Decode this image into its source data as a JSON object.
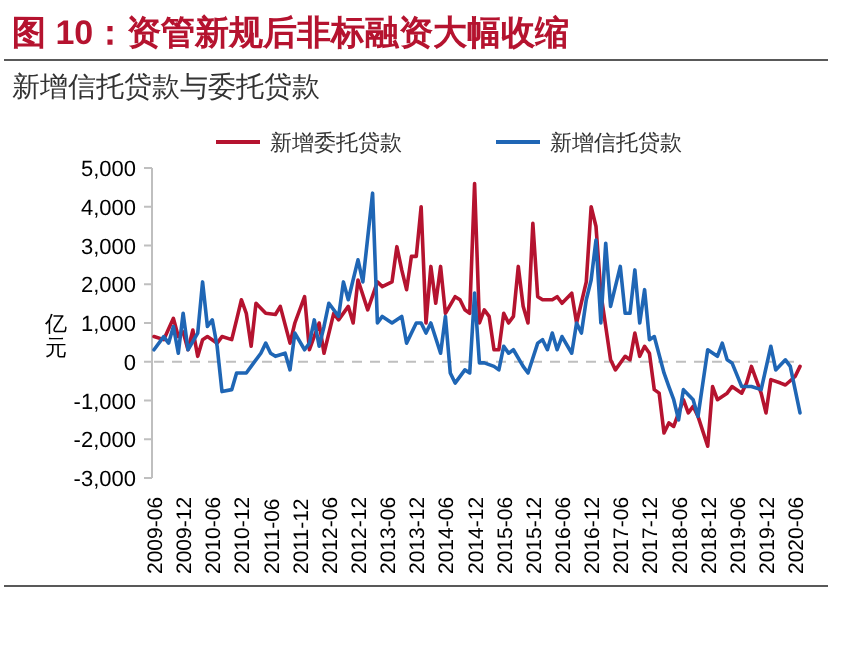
{
  "chart_data": {
    "type": "line",
    "title": "图 10：资管新规后非标融资大幅收缩",
    "subtitle": "新增信托贷款与委托贷款",
    "ylabel": "亿元",
    "xlim": [
      "2009-06",
      "2020-07"
    ],
    "xticks": [
      "2009-06",
      "2009-12",
      "2010-06",
      "2010-12",
      "2011-06",
      "2011-12",
      "2012-06",
      "2012-12",
      "2013-06",
      "2013-12",
      "2014-06",
      "2014-12",
      "2015-06",
      "2015-12",
      "2016-06",
      "2016-12",
      "2017-06",
      "2017-12",
      "2018-06",
      "2018-12",
      "2019-06",
      "2019-12",
      "2020-06"
    ],
    "ylim": [
      -3000,
      5000
    ],
    "yticks": [
      {
        "value": -3000,
        "label": "-3,000"
      },
      {
        "value": -2000,
        "label": "-2,000"
      },
      {
        "value": -1000,
        "label": "-1,000"
      },
      0,
      {
        "value": 1000,
        "label": "1,000"
      },
      {
        "value": 2000,
        "label": "2,000"
      },
      {
        "value": 3000,
        "label": "3,000"
      },
      {
        "value": 4000,
        "label": "4,000"
      },
      {
        "value": 5000,
        "label": "5,000"
      }
    ],
    "legend": "top",
    "grid": false,
    "marker": "none",
    "line_style": "solid",
    "ref_lines": [
      {
        "axis": "y",
        "value": 0,
        "color": "#bfbfbf",
        "line_style": "dashed"
      }
    ],
    "series": [
      {
        "name": "新增委托贷款",
        "color": "#b5132f",
        "x": [
          "2009-06",
          "2009-08",
          "2009-10",
          "2009-11",
          "2009-12",
          "2010-01",
          "2010-02",
          "2010-03",
          "2010-04",
          "2010-05",
          "2010-07",
          "2010-08",
          "2010-10",
          "2010-11",
          "2010-12",
          "2011-01",
          "2011-02",
          "2011-03",
          "2011-05",
          "2011-07",
          "2011-08",
          "2011-10",
          "2011-11",
          "2012-01",
          "2012-02",
          "2012-04",
          "2012-05",
          "2012-07",
          "2012-08",
          "2012-10",
          "2012-11",
          "2012-12",
          "2013-02",
          "2013-04",
          "2013-05",
          "2013-07",
          "2013-08",
          "2013-09",
          "2013-10",
          "2013-11",
          "2013-12",
          "2014-01",
          "2014-02",
          "2014-03",
          "2014-04",
          "2014-05",
          "2014-06",
          "2014-08",
          "2014-09",
          "2014-10",
          "2014-11",
          "2014-12",
          "2015-01",
          "2015-02",
          "2015-03",
          "2015-04",
          "2015-05",
          "2015-06",
          "2015-07",
          "2015-08",
          "2015-09",
          "2015-10",
          "2015-11",
          "2015-12",
          "2016-01",
          "2016-02",
          "2016-04",
          "2016-05",
          "2016-06",
          "2016-08",
          "2016-09",
          "2016-11",
          "2016-12",
          "2017-01",
          "2017-02",
          "2017-04",
          "2017-05",
          "2017-07",
          "2017-08",
          "2017-09",
          "2017-10",
          "2017-11",
          "2017-12",
          "2018-01",
          "2018-02",
          "2018-03",
          "2018-04",
          "2018-05",
          "2018-07",
          "2018-08",
          "2018-09",
          "2018-10",
          "2018-12",
          "2019-01",
          "2019-02",
          "2019-04",
          "2019-05",
          "2019-07",
          "2019-08",
          "2019-09",
          "2019-11",
          "2019-12",
          "2020-01",
          "2020-03",
          "2020-04",
          "2020-06",
          "2020-07"
        ],
        "values": [
          650,
          570,
          1120,
          650,
          770,
          310,
          820,
          140,
          570,
          650,
          480,
          650,
          570,
          1080,
          1600,
          1250,
          400,
          1510,
          1250,
          1220,
          1430,
          480,
          1000,
          1680,
          310,
          1000,
          220,
          1250,
          1080,
          1430,
          1000,
          2110,
          1340,
          2060,
          1940,
          2060,
          2970,
          2370,
          1860,
          2720,
          2720,
          4000,
          1000,
          2460,
          1510,
          2460,
          1250,
          1680,
          1600,
          1340,
          1250,
          4600,
          1000,
          1340,
          1170,
          310,
          310,
          1250,
          1000,
          1170,
          2460,
          1430,
          1000,
          3570,
          1680,
          1600,
          1600,
          1680,
          1510,
          1770,
          1000,
          2060,
          4000,
          3490,
          1770,
          50,
          -210,
          140,
          50,
          740,
          140,
          400,
          220,
          -720,
          -810,
          -1840,
          -1580,
          -1670,
          -980,
          -1320,
          -1150,
          -1410,
          -2180,
          -640,
          -980,
          -810,
          -640,
          -810,
          -550,
          -120,
          -810,
          -1320,
          -460,
          -550,
          -600,
          -380,
          -120
        ]
      },
      {
        "name": "新增信托贷款",
        "color": "#1f66b5",
        "x": [
          "2009-06",
          "2009-08",
          "2009-09",
          "2009-10",
          "2009-11",
          "2009-12",
          "2010-01",
          "2010-03",
          "2010-04",
          "2010-05",
          "2010-06",
          "2010-07",
          "2010-08",
          "2010-10",
          "2010-11",
          "2011-01",
          "2011-02",
          "2011-04",
          "2011-05",
          "2011-06",
          "2011-07",
          "2011-09",
          "2011-10",
          "2011-11",
          "2012-01",
          "2012-02",
          "2012-03",
          "2012-04",
          "2012-05",
          "2012-06",
          "2012-08",
          "2012-09",
          "2012-10",
          "2012-12",
          "2013-01",
          "2013-03",
          "2013-04",
          "2013-05",
          "2013-07",
          "2013-09",
          "2013-10",
          "2013-12",
          "2014-01",
          "2014-02",
          "2014-03",
          "2014-05",
          "2014-06",
          "2014-07",
          "2014-08",
          "2014-10",
          "2014-11",
          "2014-12",
          "2015-01",
          "2015-02",
          "2015-04",
          "2015-05",
          "2015-06",
          "2015-07",
          "2015-08",
          "2015-10",
          "2015-11",
          "2016-01",
          "2016-02",
          "2016-03",
          "2016-04",
          "2016-05",
          "2016-06",
          "2016-08",
          "2016-09",
          "2016-10",
          "2016-11",
          "2016-12",
          "2017-01",
          "2017-02",
          "2017-03",
          "2017-04",
          "2017-06",
          "2017-07",
          "2017-08",
          "2017-09",
          "2017-10",
          "2017-11",
          "2017-12",
          "2018-01",
          "2018-03",
          "2018-04",
          "2018-05",
          "2018-06",
          "2018-07",
          "2018-09",
          "2018-10",
          "2018-11",
          "2018-12",
          "2019-02",
          "2019-03",
          "2019-04",
          "2019-05",
          "2019-07",
          "2019-09",
          "2019-11",
          "2020-01",
          "2020-02",
          "2020-04",
          "2020-05",
          "2020-07"
        ],
        "values": [
          310,
          650,
          480,
          910,
          220,
          1250,
          310,
          740,
          2060,
          910,
          1080,
          400,
          -770,
          -720,
          -290,
          -290,
          -120,
          220,
          480,
          220,
          140,
          220,
          -210,
          740,
          310,
          480,
          1080,
          400,
          910,
          1510,
          1170,
          2060,
          1600,
          2630,
          2060,
          4350,
          1000,
          1170,
          1000,
          1170,
          480,
          1000,
          1000,
          740,
          1000,
          220,
          1170,
          -290,
          -550,
          -210,
          -290,
          1770,
          -30,
          -30,
          -120,
          -210,
          400,
          220,
          310,
          -120,
          -290,
          480,
          570,
          310,
          740,
          310,
          650,
          220,
          1000,
          740,
          1600,
          2110,
          3140,
          1000,
          3060,
          1430,
          2460,
          1250,
          1250,
          2370,
          1000,
          1860,
          570,
          650,
          -290,
          -640,
          -980,
          -1500,
          -720,
          -980,
          -1410,
          -550,
          310,
          140,
          480,
          50,
          -30,
          -640,
          -640,
          -720,
          400,
          -210,
          50,
          -120,
          -1320
        ]
      }
    ]
  }
}
